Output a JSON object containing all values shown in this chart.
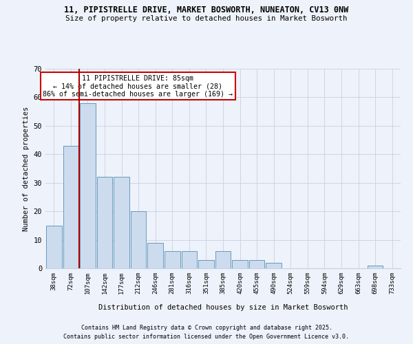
{
  "title1": "11, PIPISTRELLE DRIVE, MARKET BOSWORTH, NUNEATON, CV13 0NW",
  "title2": "Size of property relative to detached houses in Market Bosworth",
  "xlabel": "Distribution of detached houses by size in Market Bosworth",
  "ylabel": "Number of detached properties",
  "bar_color": "#ccdcee",
  "bar_edge_color": "#6699bb",
  "background_color": "#eef2fa",
  "categories": [
    "38sqm",
    "72sqm",
    "107sqm",
    "142sqm",
    "177sqm",
    "212sqm",
    "246sqm",
    "281sqm",
    "316sqm",
    "351sqm",
    "385sqm",
    "420sqm",
    "455sqm",
    "490sqm",
    "524sqm",
    "559sqm",
    "594sqm",
    "629sqm",
    "663sqm",
    "698sqm",
    "733sqm"
  ],
  "values": [
    15,
    43,
    58,
    32,
    32,
    20,
    9,
    6,
    6,
    3,
    6,
    3,
    3,
    2,
    0,
    0,
    0,
    0,
    0,
    1,
    0
  ],
  "vline_x": 1.5,
  "vline_color": "#aa0000",
  "annotation_text": "11 PIPISTRELLE DRIVE: 85sqm\n← 14% of detached houses are smaller (28)\n86% of semi-detached houses are larger (169) →",
  "annotation_box_color": "#ffffff",
  "annotation_box_edge": "#cc0000",
  "ylim": [
    0,
    70
  ],
  "yticks": [
    0,
    10,
    20,
    30,
    40,
    50,
    60,
    70
  ],
  "footer1": "Contains HM Land Registry data © Crown copyright and database right 2025.",
  "footer2": "Contains public sector information licensed under the Open Government Licence v3.0.",
  "grid_color": "#c8d0e0"
}
